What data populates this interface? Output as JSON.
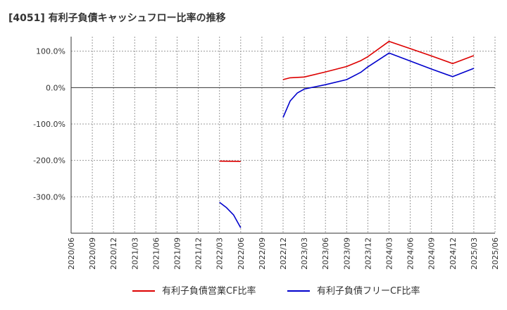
{
  "chart_data": {
    "type": "line",
    "title": "[4051]  有利子負債キャッシュフロー比率の推移",
    "xlabel": "",
    "ylabel": "",
    "x_categories": [
      "2020/06",
      "2020/09",
      "2020/12",
      "2021/03",
      "2021/06",
      "2021/09",
      "2021/12",
      "2022/03",
      "2022/06",
      "2022/09",
      "2022/12",
      "2023/03",
      "2023/06",
      "2023/09",
      "2023/12",
      "2024/03",
      "2024/06",
      "2024/09",
      "2024/12",
      "2025/03",
      "2025/06"
    ],
    "y_ticks": [
      100,
      0,
      -100,
      -200,
      -300
    ],
    "y_tick_labels": [
      "100.0%",
      "0.0%",
      "-100.0%",
      "-200.0%",
      "-300.0%"
    ],
    "ylim": [
      -400,
      140
    ],
    "grid": true,
    "legend_position": "bottom",
    "series": [
      {
        "name": "有利子負債営業CF比率",
        "color": "#dd0000",
        "segments": [
          [
            [
              "2022/03",
              -202
            ],
            [
              "2022/06",
              -203
            ]
          ],
          [
            [
              "2022/12",
              22
            ],
            [
              "2023/01",
              27
            ],
            [
              "2023/03",
              29
            ],
            [
              "2023/06",
              43
            ],
            [
              "2023/09",
              58
            ],
            [
              "2023/11",
              74
            ],
            [
              "2023/12",
              85
            ],
            [
              "2024/03",
              127
            ],
            [
              "2024/06",
              107
            ],
            [
              "2024/09",
              87
            ],
            [
              "2024/12",
              66
            ],
            [
              "2025/03",
              88
            ]
          ]
        ]
      },
      {
        "name": "有利子負債フリーCF比率",
        "color": "#0000cc",
        "segments": [
          [
            [
              "2022/03",
              -315
            ],
            [
              "2022/04",
              -330
            ],
            [
              "2022/05",
              -350
            ],
            [
              "2022/06",
              -385
            ]
          ],
          [
            [
              "2022/12",
              -82
            ],
            [
              "2023/01",
              -37
            ],
            [
              "2023/02",
              -15
            ],
            [
              "2023/03",
              -4
            ],
            [
              "2023/06",
              8
            ],
            [
              "2023/09",
              22
            ],
            [
              "2023/11",
              42
            ],
            [
              "2023/12",
              57
            ],
            [
              "2024/03",
              95
            ],
            [
              "2024/06",
              73
            ],
            [
              "2024/09",
              51
            ],
            [
              "2024/12",
              30
            ],
            [
              "2025/03",
              53
            ]
          ]
        ]
      }
    ]
  }
}
